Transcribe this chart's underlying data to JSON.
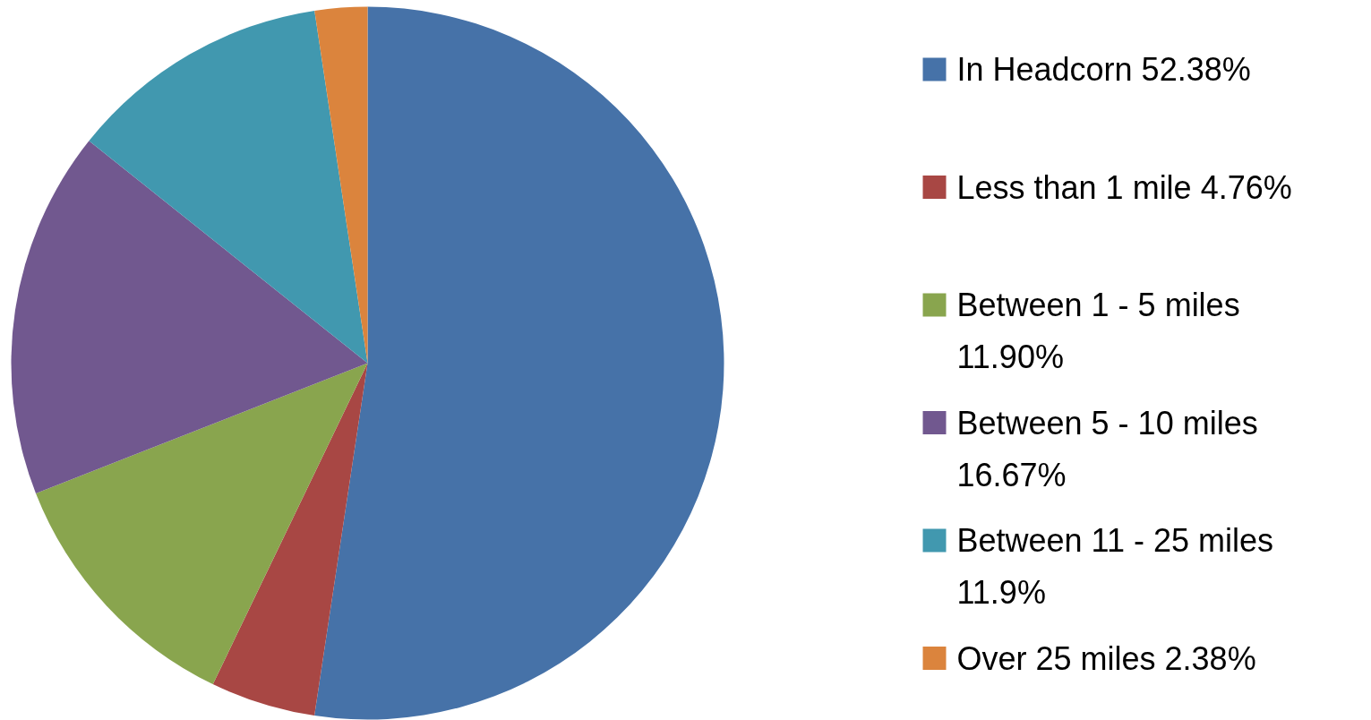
{
  "chart_data": {
    "type": "pie",
    "categories": [
      "In Headcorn",
      "Less than 1 mile",
      "Between 1 - 5 miles",
      "Between 5 - 10 miles",
      "Between 11 - 25 miles",
      "Over 25 miles"
    ],
    "values": [
      52.38,
      4.76,
      11.9,
      16.67,
      11.9,
      2.38
    ],
    "value_labels": [
      "52.38%",
      "4.76%",
      "11.90%",
      "16.67%",
      "11.9%",
      "2.38%"
    ],
    "colors": [
      "#4672a8",
      "#a84744",
      "#89a54e",
      "#71588f",
      "#4198af",
      "#db843d"
    ],
    "legend": "right"
  }
}
